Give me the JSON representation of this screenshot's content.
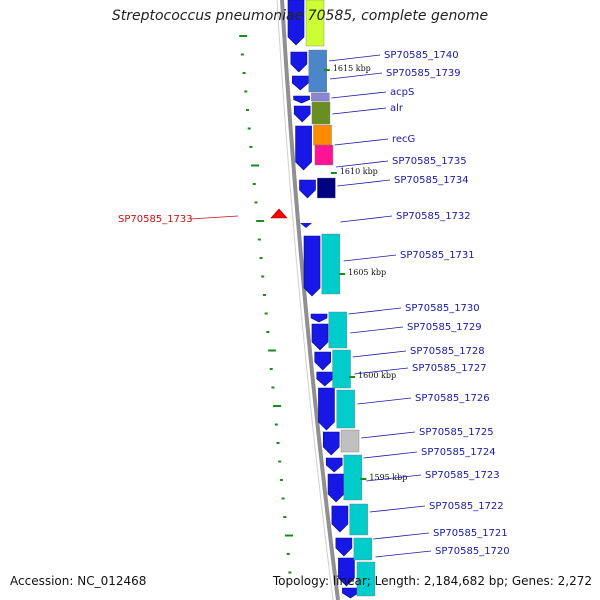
{
  "title": "Streptococcus pneumoniae 70585, complete genome",
  "footer": {
    "accession": "Accession: NC_012468",
    "summary": "Topology: linear; Length: 2,184,682 bp; Genes: 2,272"
  },
  "ticks": [
    "1615 kbp",
    "1610 kbp",
    "1605 kbp",
    "1600 kbp",
    "1595 kbp"
  ],
  "genes": [
    {
      "label": "SP70585_1740",
      "color": "#ccff33"
    },
    {
      "label": "SP70585_1739",
      "color": "#4a86c8"
    },
    {
      "label": "acpS",
      "color": "#8a86d6"
    },
    {
      "label": "alr",
      "color": "#6b8e23"
    },
    {
      "label": "recG",
      "color": "#ff8c00"
    },
    {
      "label": "SP70585_1735",
      "color": "#ffffff"
    },
    {
      "label": "SP70585_1734",
      "color": "#000080"
    },
    {
      "label": "SP70585_1733",
      "color": "#ff0000",
      "highlight": true
    },
    {
      "label": "SP70585_1732",
      "color": "#ffffff"
    },
    {
      "label": "SP70585_1731",
      "color": "#00cccc"
    },
    {
      "label": "SP70585_1730",
      "color": "#00cccc"
    },
    {
      "label": "SP70585_1729",
      "color": "#00cccc"
    },
    {
      "label": "SP70585_1728",
      "color": "#00cccc"
    },
    {
      "label": "SP70585_1727",
      "color": "#00cccc"
    },
    {
      "label": "SP70585_1726",
      "color": "#00cccc"
    },
    {
      "label": "SP70585_1725",
      "color": "#c0c0c0"
    },
    {
      "label": "SP70585_1724",
      "color": "#00cccc"
    },
    {
      "label": "SP70585_1723",
      "color": "#00cccc"
    },
    {
      "label": "SP70585_1722",
      "color": "#00cccc"
    },
    {
      "label": "SP70585_1721",
      "color": "#00cccc"
    },
    {
      "label": "SP70585_1720",
      "color": "#00cccc"
    }
  ]
}
